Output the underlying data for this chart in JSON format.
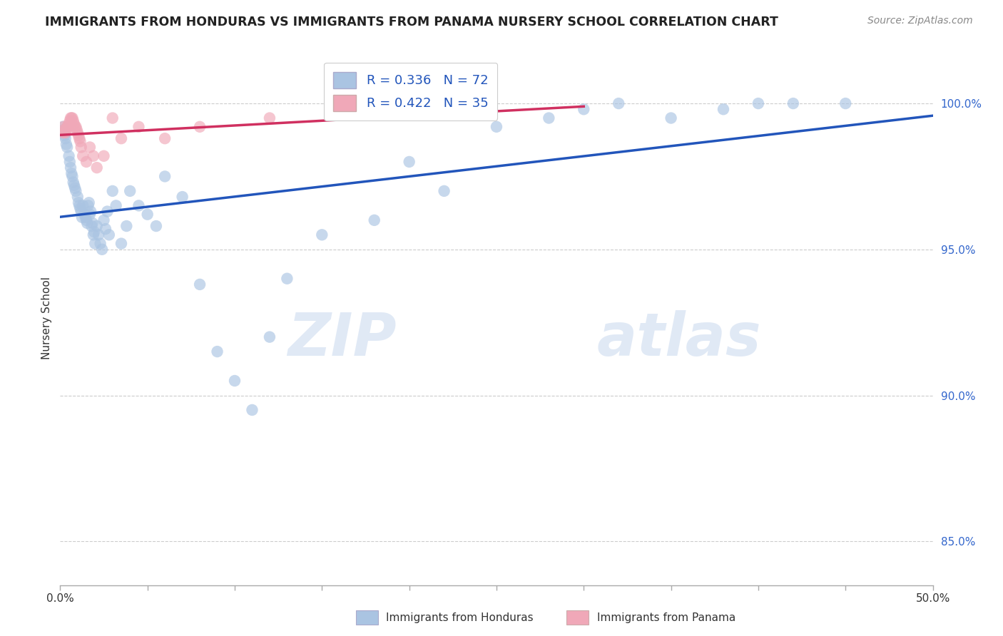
{
  "title": "IMMIGRANTS FROM HONDURAS VS IMMIGRANTS FROM PANAMA NURSERY SCHOOL CORRELATION CHART",
  "source": "Source: ZipAtlas.com",
  "ylabel": "Nursery School",
  "ytick_vals": [
    85.0,
    90.0,
    95.0,
    100.0
  ],
  "xlim": [
    0.0,
    50.0
  ],
  "ylim": [
    83.5,
    101.8
  ],
  "legend1_R": "0.336",
  "legend1_N": "72",
  "legend2_R": "0.422",
  "legend2_N": "35",
  "color_honduras": "#aac4e2",
  "color_panama": "#f0a8b8",
  "color_trendline_honduras": "#2255bb",
  "color_trendline_panama": "#d03060",
  "watermark_zip": "ZIP",
  "watermark_atlas": "atlas",
  "hon_x": [
    0.2,
    0.3,
    0.4,
    0.5,
    0.6,
    0.7,
    0.8,
    0.9,
    1.0,
    1.1,
    1.2,
    1.3,
    1.4,
    1.5,
    1.6,
    1.7,
    1.8,
    1.9,
    2.0,
    2.1,
    2.2,
    2.3,
    2.4,
    2.5,
    2.6,
    2.7,
    2.8,
    3.0,
    3.2,
    3.5,
    3.8,
    4.0,
    4.5,
    5.0,
    5.5,
    6.0,
    7.0,
    8.0,
    9.0,
    10.0,
    11.0,
    12.0,
    13.0,
    15.0,
    18.0,
    20.0,
    22.0,
    25.0,
    28.0,
    30.0,
    32.0,
    35.0,
    38.0,
    40.0,
    42.0,
    45.0,
    0.15,
    0.25,
    0.35,
    0.55,
    0.65,
    0.75,
    0.85,
    1.05,
    1.15,
    1.25,
    1.45,
    1.55,
    1.65,
    1.75,
    1.85,
    1.95
  ],
  "hon_y": [
    99.1,
    98.8,
    98.5,
    98.2,
    97.8,
    97.5,
    97.2,
    97.0,
    96.8,
    96.5,
    96.3,
    96.5,
    96.2,
    96.0,
    96.5,
    96.2,
    95.8,
    95.5,
    95.2,
    95.8,
    95.5,
    95.2,
    95.0,
    96.0,
    95.7,
    96.3,
    95.5,
    97.0,
    96.5,
    95.2,
    95.8,
    97.0,
    96.5,
    96.2,
    95.8,
    97.5,
    96.8,
    93.8,
    91.5,
    90.5,
    89.5,
    92.0,
    94.0,
    95.5,
    96.0,
    98.0,
    97.0,
    99.2,
    99.5,
    99.8,
    100.0,
    99.5,
    99.8,
    100.0,
    100.0,
    100.0,
    99.2,
    98.9,
    98.6,
    98.0,
    97.6,
    97.3,
    97.1,
    96.6,
    96.4,
    96.1,
    96.1,
    95.9,
    96.6,
    96.3,
    95.9,
    95.6
  ],
  "pan_x": [
    0.15,
    0.2,
    0.3,
    0.4,
    0.5,
    0.6,
    0.7,
    0.8,
    0.9,
    1.0,
    1.1,
    1.2,
    1.3,
    1.5,
    1.7,
    1.9,
    2.1,
    2.5,
    3.0,
    3.5,
    4.5,
    6.0,
    8.0,
    12.0,
    18.0,
    0.25,
    0.35,
    0.45,
    0.55,
    0.65,
    0.75,
    0.85,
    0.95,
    1.05,
    1.15
  ],
  "pan_y": [
    99.0,
    99.2,
    99.0,
    99.2,
    99.3,
    99.5,
    99.5,
    99.3,
    99.2,
    99.0,
    98.8,
    98.5,
    98.2,
    98.0,
    98.5,
    98.2,
    97.8,
    98.2,
    99.5,
    98.8,
    99.2,
    98.8,
    99.2,
    99.5,
    99.8,
    99.1,
    99.1,
    99.2,
    99.4,
    99.5,
    99.4,
    99.2,
    99.1,
    98.9,
    98.7
  ]
}
